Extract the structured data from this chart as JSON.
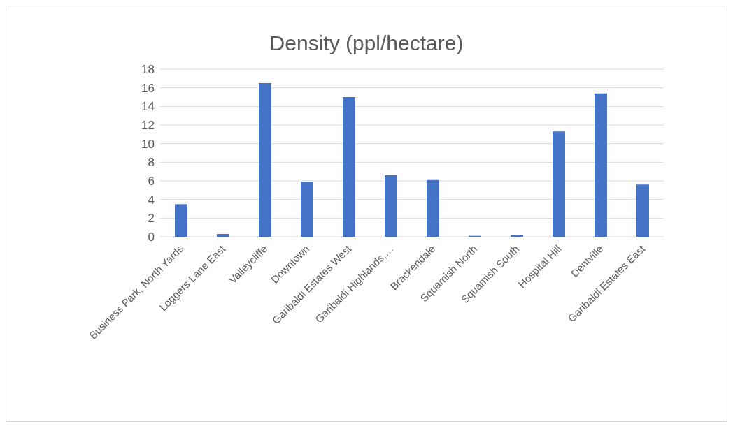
{
  "chart_data": {
    "type": "bar",
    "title": "Density (ppl/hectare)",
    "categories": [
      "Business Park, North Yards",
      "Loggers Lane East",
      "Valleycliffe",
      "Downtown",
      "Garibaldi Estates West",
      "Garibaldi Highlands,…",
      "Brackendale",
      "Squamish North",
      "Squamish South",
      "Hospital Hill",
      "Dentville",
      "Garibaldi Estates East"
    ],
    "values": [
      3.5,
      0.3,
      16.5,
      5.9,
      15,
      6.6,
      6.1,
      0.1,
      0.2,
      11.3,
      15.4,
      5.6
    ],
    "color": "#4472c4",
    "ylim": [
      0,
      18
    ],
    "yticks": [
      0,
      2,
      4,
      6,
      8,
      10,
      12,
      14,
      16,
      18
    ],
    "grid": "y"
  }
}
